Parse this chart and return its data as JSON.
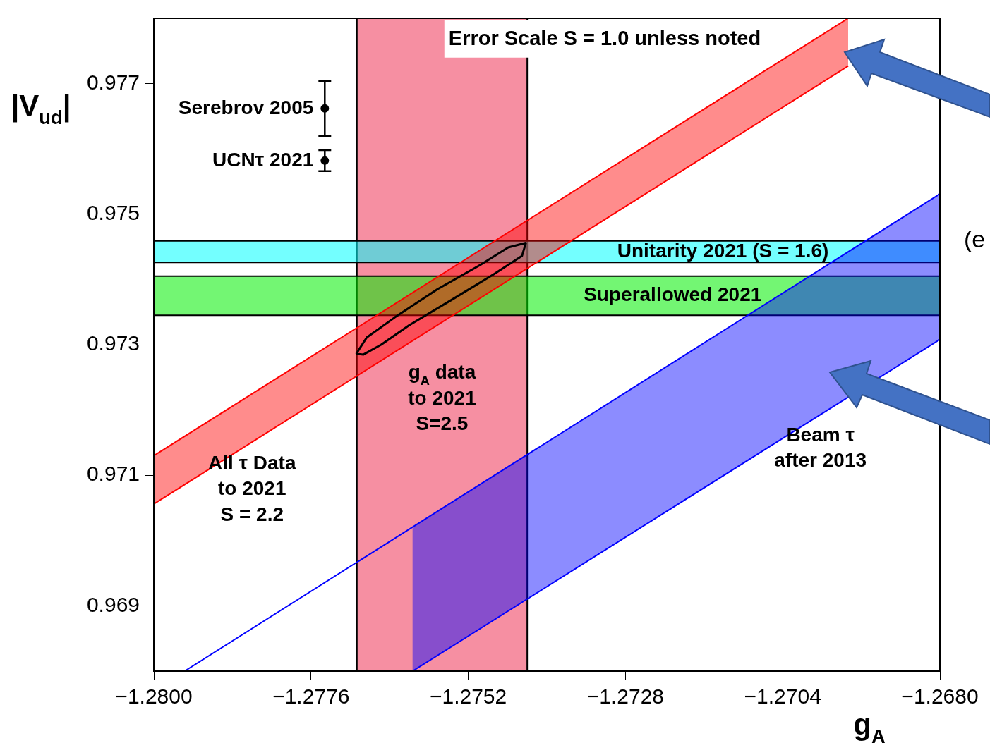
{
  "chart_data": {
    "type": "line",
    "xlabel": "g$_{A}$",
    "ylabel": "|V$_{ud}$|",
    "xlim": [
      -1.28,
      -1.268
    ],
    "xticks": [
      {
        "value": -1.28,
        "label": "−1.2800"
      },
      {
        "value": -1.2776,
        "label": "−1.2776"
      },
      {
        "value": -1.2752,
        "label": "−1.2752"
      },
      {
        "value": -1.2728,
        "label": "−1.2728"
      },
      {
        "value": -1.2704,
        "label": "−1.2704"
      },
      {
        "value": -1.268,
        "label": "−1.2680"
      }
    ],
    "ylim": [
      0.968,
      0.978
    ],
    "yticks": [
      0.969,
      0.971,
      0.973,
      0.975,
      0.977
    ],
    "grid": false,
    "legend": false,
    "marker": "none",
    "bands": [
      {
        "axis": "x",
        "from": -1.2769,
        "to": -1.2743,
        "label": "g$_{A}$ data\nto 2021\nS=2.5",
        "color": "#ee3355"
      },
      {
        "axis": "y",
        "from": 0.97426,
        "to": 0.97459,
        "label": "Unitarity 2021 (S = 1.6)",
        "color": "#00ffff"
      },
      {
        "axis": "y",
        "from": 0.97345,
        "to": 0.97405,
        "label": "Superallowed 2021",
        "color": "#00ee00"
      }
    ],
    "series": [
      {
        "name": "All τ Data\nto 2021\nS = 2.2",
        "type": "area",
        "color": "#ff0000",
        "x": [
          -1.28,
          -1.2694
        ],
        "values": [
          0.9713,
          0.978
        ]
      },
      {
        "color": "#ff0000",
        "x": [
          -1.28,
          -1.2694
        ],
        "values": [
          0.97056,
          0.97727
        ]
      },
      {
        "name": "Beam τ\nafter 2013",
        "type": "area",
        "color": "#0000ff",
        "x": [
          -1.27953,
          -1.268
        ],
        "values": [
          0.968,
          0.97531
        ]
      },
      {
        "color": "#0000ff",
        "x": [
          -1.27605,
          -1.268
        ],
        "values": [
          0.968,
          0.97308
        ]
      },
      {
        "color": "#000000",
        "x": [
          -1.27691,
          -1.27675,
          -1.27632,
          -1.27567,
          -1.27502,
          -1.27459,
          -1.27432
        ],
        "values": [
          0.97286,
          0.97311,
          0.97342,
          0.97385,
          0.97422,
          0.97449,
          0.97456
        ]
      },
      {
        "color": "#000000",
        "x": [
          -1.27691,
          -1.2768,
          -1.27653,
          -1.2761,
          -1.27545,
          -1.27481,
          -1.27438,
          -1.27432
        ],
        "values": [
          0.97286,
          0.97285,
          0.973,
          0.9733,
          0.97369,
          0.97408,
          0.97436,
          0.97456
        ]
      },
      {
        "name": "Serebrov 2005",
        "type": "scatter",
        "marker": "circle",
        "color": "#000000",
        "x": [
          -1.27739
        ],
        "values": [
          0.97662
        ],
        "errors": [
          0.00042
        ]
      },
      {
        "name": "UCNτ 2021",
        "type": "scatter",
        "marker": "circle",
        "color": "#000000",
        "x": [
          -1.27739
        ],
        "values": [
          0.97582
        ],
        "errors": [
          0.00016
        ]
      }
    ],
    "annotations": [
      "Error Scale S = 1.0 unless noted",
      "(e"
    ]
  }
}
